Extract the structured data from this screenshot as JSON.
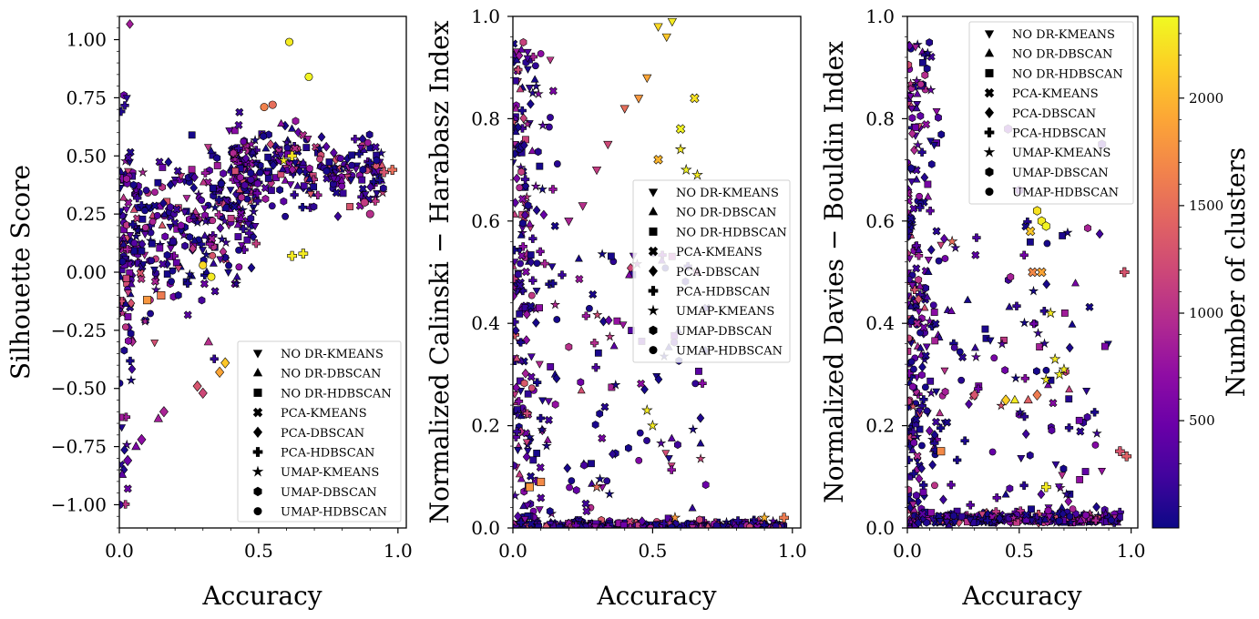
{
  "figure": {
    "colorbar": {
      "label": "Number of clusters",
      "ticks": [
        500,
        1000,
        1500,
        2000
      ],
      "range": [
        1,
        2380
      ],
      "colormap": "plasma"
    },
    "legend_entries": [
      {
        "label": "NO DR-KMEANS",
        "marker": "triangle-down"
      },
      {
        "label": "NO DR-DBSCAN",
        "marker": "triangle-up"
      },
      {
        "label": "NO DR-HDBSCAN",
        "marker": "square"
      },
      {
        "label": "PCA-KMEANS",
        "marker": "x-cross"
      },
      {
        "label": "PCA-DBSCAN",
        "marker": "diamond"
      },
      {
        "label": "PCA-HDBSCAN",
        "marker": "plus"
      },
      {
        "label": "UMAP-KMEANS",
        "marker": "star"
      },
      {
        "label": "UMAP-DBSCAN",
        "marker": "hexagon"
      },
      {
        "label": "UMAP-HDBSCAN",
        "marker": "circle"
      }
    ]
  },
  "chart_data": [
    {
      "type": "scatter",
      "title": "",
      "xlabel": "Accuracy",
      "ylabel": "Silhouette Score",
      "xlim": [
        0,
        1.03
      ],
      "ylim": [
        -1.1,
        1.1
      ],
      "xticks": [
        0.0,
        0.5,
        1.0
      ],
      "xtick_labels": [
        "0.0",
        "0.5",
        "1.0"
      ],
      "yticks": [
        -1.0,
        -0.75,
        -0.5,
        -0.25,
        0.0,
        0.25,
        0.5,
        0.75,
        1.0
      ],
      "ytick_labels": [
        "−1.00",
        "−0.75",
        "−0.50",
        "−0.25",
        "0.00",
        "0.25",
        "0.50",
        "0.75",
        "1.00"
      ],
      "legend": "lower-right",
      "points": [
        {
          "x": 0.61,
          "y": 0.99,
          "c": 2300,
          "m": "circle"
        },
        {
          "x": 0.68,
          "y": 0.84,
          "c": 2350,
          "m": "circle"
        },
        {
          "x": 0.52,
          "y": 0.71,
          "c": 1650,
          "m": "circle"
        },
        {
          "x": 0.55,
          "y": 0.72,
          "c": 1500,
          "m": "circle"
        },
        {
          "x": 0.59,
          "y": 0.48,
          "c": 2300,
          "m": "star"
        },
        {
          "x": 0.62,
          "y": 0.5,
          "c": 2250,
          "m": "plus"
        },
        {
          "x": 0.62,
          "y": 0.07,
          "c": 2300,
          "m": "plus"
        },
        {
          "x": 0.66,
          "y": 0.08,
          "c": 2300,
          "m": "plus"
        },
        {
          "x": 0.3,
          "y": 0.03,
          "c": 2200,
          "m": "circle"
        },
        {
          "x": 0.33,
          "y": -0.02,
          "c": 2300,
          "m": "circle"
        },
        {
          "x": 0.38,
          "y": -0.39,
          "c": 2100,
          "m": "diamond"
        },
        {
          "x": 0.36,
          "y": -0.43,
          "c": 1900,
          "m": "diamond"
        },
        {
          "x": 0.28,
          "y": -0.49,
          "c": 1300,
          "m": "diamond"
        },
        {
          "x": 0.3,
          "y": -0.52,
          "c": 1200,
          "m": "diamond"
        },
        {
          "x": 0.32,
          "y": -0.3,
          "c": 1000,
          "m": "triangle-up"
        },
        {
          "x": 0.16,
          "y": -0.6,
          "c": 900,
          "m": "diamond"
        },
        {
          "x": 0.14,
          "y": -0.63,
          "c": 850,
          "m": "triangle-up"
        },
        {
          "x": 0.08,
          "y": -0.72,
          "c": 700,
          "m": "diamond"
        },
        {
          "x": 0.06,
          "y": -0.75,
          "c": 600,
          "m": "triangle-up"
        },
        {
          "x": 0.03,
          "y": -0.81,
          "c": 500,
          "m": "diamond"
        },
        {
          "x": 0.01,
          "y": -0.87,
          "c": 400,
          "m": "triangle-up"
        },
        {
          "x": 0.0,
          "y": -1.0,
          "c": 200,
          "m": "circle"
        },
        {
          "x": 0.15,
          "y": -0.1,
          "c": 1600,
          "m": "square"
        },
        {
          "x": 0.1,
          "y": -0.12,
          "c": 1800,
          "m": "square"
        },
        {
          "x": 0.88,
          "y": 0.3,
          "c": 1100,
          "m": "circle"
        },
        {
          "x": 0.9,
          "y": 0.25,
          "c": 1000,
          "m": "circle"
        },
        {
          "x": 0.95,
          "y": 0.43,
          "c": 1300,
          "m": "plus"
        },
        {
          "x": 0.98,
          "y": 0.44,
          "c": 1500,
          "m": "plus"
        }
      ]
    },
    {
      "type": "scatter",
      "title": "",
      "xlabel": "Accuracy",
      "ylabel": "Normalized Calinski − Harabasz Index",
      "xlim": [
        0,
        1.03
      ],
      "ylim": [
        0,
        1.0
      ],
      "xticks": [
        0.0,
        0.5,
        1.0
      ],
      "xtick_labels": [
        "0.0",
        "0.5",
        "1.0"
      ],
      "yticks": [
        0.0,
        0.2,
        0.4,
        0.6,
        0.8,
        1.0
      ],
      "ytick_labels": [
        "0.0",
        "0.2",
        "0.4",
        "0.6",
        "0.8",
        "1.0"
      ],
      "legend": "center-right",
      "points": [
        {
          "x": 0.52,
          "y": 0.98,
          "c": 2200,
          "m": "triangle-down"
        },
        {
          "x": 0.57,
          "y": 0.99,
          "c": 2300,
          "m": "triangle-down"
        },
        {
          "x": 0.55,
          "y": 0.96,
          "c": 2100,
          "m": "triangle-down"
        },
        {
          "x": 0.45,
          "y": 0.84,
          "c": 1800,
          "m": "triangle-down"
        },
        {
          "x": 0.48,
          "y": 0.88,
          "c": 1900,
          "m": "triangle-down"
        },
        {
          "x": 0.4,
          "y": 0.82,
          "c": 1500,
          "m": "triangle-down"
        },
        {
          "x": 0.34,
          "y": 0.75,
          "c": 1200,
          "m": "triangle-down"
        },
        {
          "x": 0.3,
          "y": 0.7,
          "c": 1100,
          "m": "triangle-down"
        },
        {
          "x": 0.6,
          "y": 0.78,
          "c": 2350,
          "m": "x-cross"
        },
        {
          "x": 0.65,
          "y": 0.84,
          "c": 2250,
          "m": "x-cross"
        },
        {
          "x": 0.52,
          "y": 0.72,
          "c": 2000,
          "m": "x-cross"
        },
        {
          "x": 0.6,
          "y": 0.74,
          "c": 2300,
          "m": "star"
        },
        {
          "x": 0.62,
          "y": 0.7,
          "c": 2350,
          "m": "star"
        },
        {
          "x": 0.66,
          "y": 0.69,
          "c": 2300,
          "m": "star"
        },
        {
          "x": 0.25,
          "y": 0.63,
          "c": 1000,
          "m": "triangle-down"
        },
        {
          "x": 0.2,
          "y": 0.6,
          "c": 900,
          "m": "triangle-down"
        },
        {
          "x": 0.3,
          "y": 0.08,
          "c": 1500,
          "m": "star"
        },
        {
          "x": 0.1,
          "y": 0.09,
          "c": 1700,
          "m": "square"
        },
        {
          "x": 0.06,
          "y": 0.08,
          "c": 1800,
          "m": "square"
        },
        {
          "x": 0.58,
          "y": 0.02,
          "c": 1800,
          "m": "star"
        },
        {
          "x": 0.9,
          "y": 0.02,
          "c": 2000,
          "m": "star"
        },
        {
          "x": 0.97,
          "y": 0.02,
          "c": 1600,
          "m": "plus"
        },
        {
          "x": 0.5,
          "y": 0.2,
          "c": 2300,
          "m": "star"
        },
        {
          "x": 0.48,
          "y": 0.23,
          "c": 2300,
          "m": "star"
        }
      ]
    },
    {
      "type": "scatter",
      "title": "",
      "xlabel": "Accuracy",
      "ylabel": "Normalized Davies − Bouldin Index",
      "xlim": [
        0,
        1.03
      ],
      "ylim": [
        0,
        1.0
      ],
      "xticks": [
        0.0,
        0.5,
        1.0
      ],
      "xtick_labels": [
        "0.0",
        "0.5",
        "1.0"
      ],
      "yticks": [
        0.0,
        0.2,
        0.4,
        0.6,
        0.8,
        1.0
      ],
      "ytick_labels": [
        "0.0",
        "0.2",
        "0.4",
        "0.6",
        "0.8",
        "1.0"
      ],
      "legend": "upper-right",
      "points": [
        {
          "x": 0.6,
          "y": 0.6,
          "c": 2300,
          "m": "hexagon"
        },
        {
          "x": 0.58,
          "y": 0.62,
          "c": 2250,
          "m": "hexagon"
        },
        {
          "x": 0.62,
          "y": 0.59,
          "c": 2350,
          "m": "hexagon"
        },
        {
          "x": 0.55,
          "y": 0.58,
          "c": 2100,
          "m": "x-cross"
        },
        {
          "x": 0.6,
          "y": 0.5,
          "c": 1900,
          "m": "x-cross"
        },
        {
          "x": 0.56,
          "y": 0.5,
          "c": 1700,
          "m": "x-cross"
        },
        {
          "x": 0.64,
          "y": 0.42,
          "c": 2300,
          "m": "star"
        },
        {
          "x": 0.68,
          "y": 0.3,
          "c": 2350,
          "m": "star"
        },
        {
          "x": 0.66,
          "y": 0.33,
          "c": 2300,
          "m": "star"
        },
        {
          "x": 0.7,
          "y": 0.31,
          "c": 2300,
          "m": "star"
        },
        {
          "x": 0.62,
          "y": 0.29,
          "c": 2300,
          "m": "star"
        },
        {
          "x": 0.44,
          "y": 0.25,
          "c": 2150,
          "m": "diamond"
        },
        {
          "x": 0.48,
          "y": 0.25,
          "c": 2300,
          "m": "triangle-up"
        },
        {
          "x": 0.54,
          "y": 0.25,
          "c": 1400,
          "m": "triangle-up"
        },
        {
          "x": 0.58,
          "y": 0.26,
          "c": 1600,
          "m": "diamond"
        },
        {
          "x": 0.3,
          "y": 0.26,
          "c": 1300,
          "m": "diamond"
        },
        {
          "x": 0.45,
          "y": 0.78,
          "c": 500,
          "m": "hexagon"
        },
        {
          "x": 0.5,
          "y": 0.66,
          "c": 400,
          "m": "hexagon"
        },
        {
          "x": 0.87,
          "y": 0.75,
          "c": 300,
          "m": "hexagon"
        },
        {
          "x": 0.97,
          "y": 0.5,
          "c": 1300,
          "m": "plus"
        },
        {
          "x": 0.95,
          "y": 0.15,
          "c": 1300,
          "m": "plus"
        },
        {
          "x": 0.98,
          "y": 0.14,
          "c": 1400,
          "m": "plus"
        },
        {
          "x": 0.62,
          "y": 0.08,
          "c": 2300,
          "m": "plus"
        },
        {
          "x": 0.2,
          "y": 0.56,
          "c": 1500,
          "m": "star"
        },
        {
          "x": 0.15,
          "y": 0.15,
          "c": 1700,
          "m": "square"
        }
      ]
    }
  ]
}
